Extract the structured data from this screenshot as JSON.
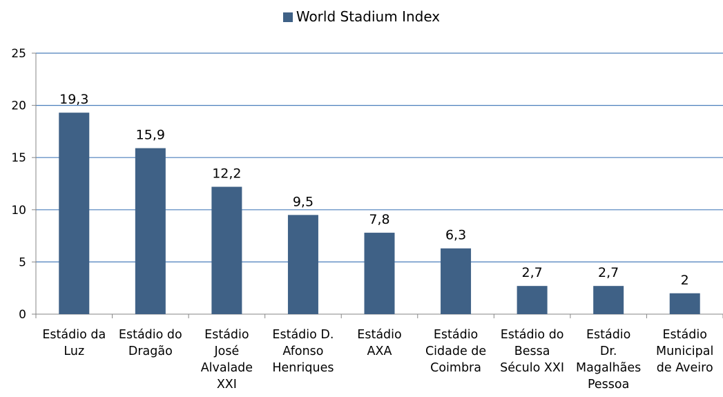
{
  "chart_data": {
    "type": "bar",
    "categories": [
      [
        "Estádio da",
        "Luz"
      ],
      [
        "Estádio do",
        "Dragão"
      ],
      [
        "Estádio",
        "José",
        "Alvalade",
        "XXI"
      ],
      [
        "Estádio D.",
        "Afonso",
        "Henriques"
      ],
      [
        "Estádio",
        "AXA"
      ],
      [
        "Estádio",
        "Cidade de",
        "Coimbra"
      ],
      [
        "Estádio do",
        "Bessa",
        "Século XXI"
      ],
      [
        "Estádio",
        "Dr.",
        "Magalhães",
        "Pessoa"
      ],
      [
        "Estádio",
        "Municipal",
        "de Aveiro"
      ]
    ],
    "series": [
      {
        "name": "World Stadium Index",
        "values": [
          19.3,
          15.9,
          12.2,
          9.5,
          7.8,
          6.3,
          2.7,
          2.7,
          2
        ],
        "data_labels": [
          "19,3",
          "15,9",
          "12,2",
          "9,5",
          "7,8",
          "6,3",
          "2,7",
          "2,7",
          "2"
        ]
      }
    ],
    "ylim": [
      0,
      25
    ],
    "yticks": [
      0,
      5,
      10,
      15,
      20,
      25
    ],
    "grid": true,
    "legend_position": "top",
    "colors": {
      "bar": "#3f6186",
      "grid": "#4a7ebb",
      "axis": "#868686"
    }
  }
}
